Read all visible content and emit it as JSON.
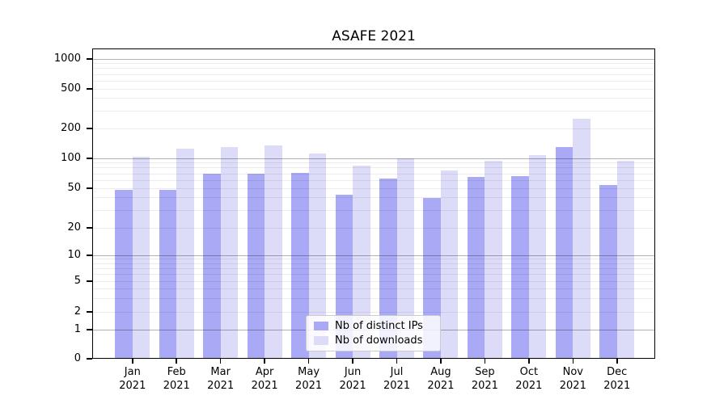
{
  "chart_data": {
    "type": "bar",
    "title": "ASAFE 2021",
    "categories": [
      "Jan",
      "Feb",
      "Mar",
      "Apr",
      "May",
      "Jun",
      "Jul",
      "Aug",
      "Sep",
      "Oct",
      "Nov",
      "Dec"
    ],
    "year_label": "2021",
    "series": [
      {
        "name": "Nb of distinct IPs",
        "color": "#a9a9f5",
        "values": [
          48,
          48,
          70,
          70,
          71,
          43,
          63,
          40,
          65,
          66,
          129,
          54
        ]
      },
      {
        "name": "Nb of downloads",
        "color": "#dcdcf9",
        "values": [
          103,
          125,
          130,
          136,
          112,
          85,
          100,
          75,
          95,
          108,
          248,
          94
        ]
      }
    ],
    "yticks": [
      0,
      1,
      2,
      5,
      10,
      20,
      50,
      100,
      200,
      500,
      1000
    ],
    "ylim": [
      0,
      1275
    ],
    "yscale": "symlog",
    "xlabel": "",
    "ylabel": "",
    "grid": "both-horizontal",
    "legend_position": "lower center"
  }
}
